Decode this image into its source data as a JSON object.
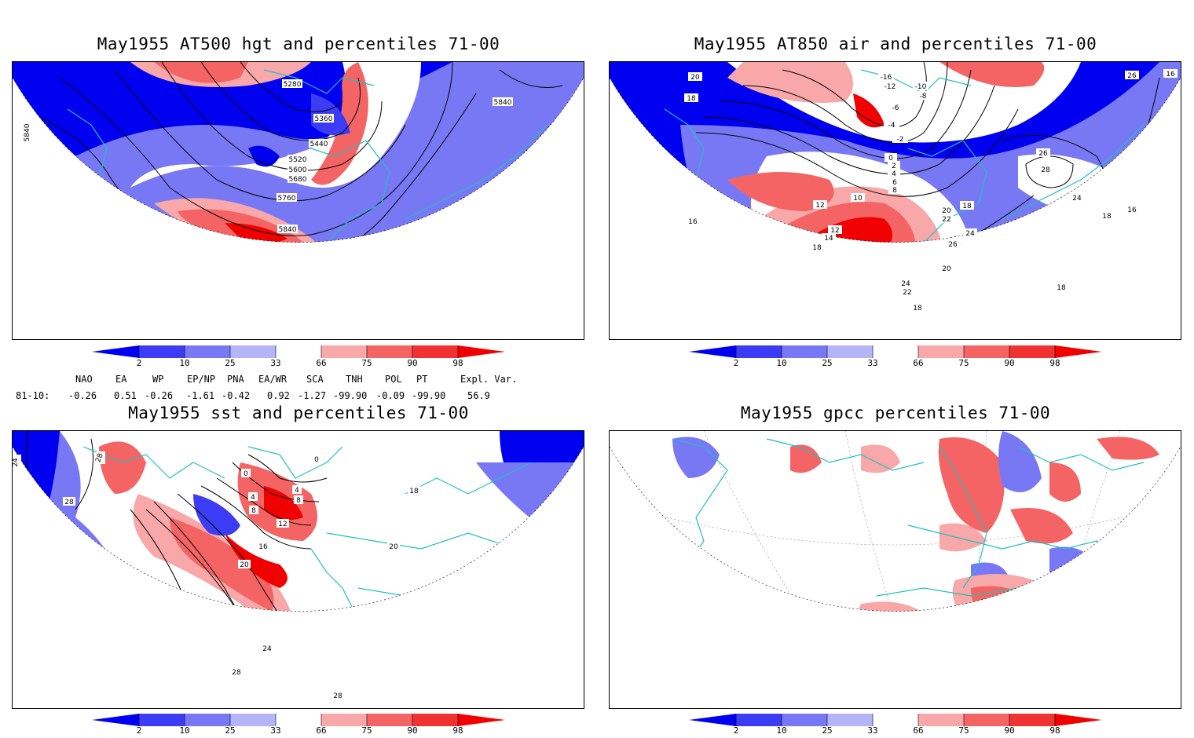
{
  "panels": [
    {
      "title": "May1955 AT500 hgt and percentiles 71-00",
      "contour_labels": [
        "5280",
        "5360",
        "5440",
        "5520",
        "5600",
        "5680",
        "5760",
        "5840",
        "5840",
        "5840"
      ]
    },
    {
      "title": "May1955 AT850 air and percentiles 71-00",
      "contour_labels": [
        "20",
        "18",
        "16",
        "12",
        "10",
        "18",
        "12",
        "14",
        "18",
        "20",
        "22",
        "24",
        "26",
        "24",
        "26",
        "28",
        "26",
        "24",
        "18",
        "16",
        "16",
        "18",
        "-16",
        "-12",
        "-10",
        "-8",
        "-6",
        "-4",
        "-2",
        "0",
        "2",
        "4",
        "6",
        "8",
        "20",
        "22",
        "18",
        "26"
      ]
    },
    {
      "title": "May1955 sst and percentiles 71-00",
      "contour_labels": [
        "24",
        "28",
        "28",
        "0",
        "0",
        "4",
        "4",
        "8",
        "8",
        "12",
        "16",
        "20",
        "24",
        "28",
        "28",
        "18",
        "20"
      ]
    },
    {
      "title": "May1955 gpcc percentiles 71-00",
      "contour_labels": []
    }
  ],
  "colorbar": {
    "ticks": [
      "2",
      "10",
      "25",
      "33",
      "66",
      "75",
      "90",
      "98"
    ],
    "colors": [
      "#0000f0",
      "#3c3cf5",
      "#7878f5",
      "#b4b4f8",
      "#ffffff",
      "#f8a8a8",
      "#f46464",
      "#f03232",
      "#f00000"
    ]
  },
  "indices": {
    "names": [
      "NAO",
      "EA",
      "WP",
      "EP/NP",
      "PNA",
      "EA/WR",
      "SCA",
      "TNH",
      "POL",
      "PT",
      "Expl. Var."
    ],
    "row_label": "81-10:",
    "values": [
      "-0.26",
      "0.51",
      "-0.26",
      "-1.61",
      "-0.42",
      "0.92",
      "-1.27",
      "-99.90",
      "-0.09",
      "-99.90",
      "56.9"
    ]
  }
}
